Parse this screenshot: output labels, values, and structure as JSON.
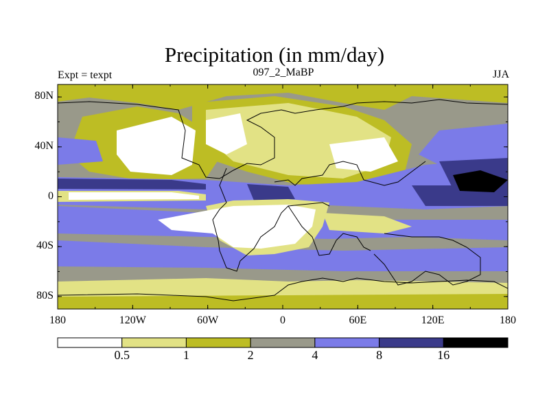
{
  "figure": {
    "title": "Precipitation (in mm/day)",
    "left_label": "Expt = texpt",
    "center_label": "097_2_MaBP",
    "right_label": "JJA"
  },
  "axes": {
    "y_ticks": [
      {
        "value": 80,
        "label": "80N"
      },
      {
        "value": 40,
        "label": "40N"
      },
      {
        "value": 0,
        "label": "0"
      },
      {
        "value": -40,
        "label": "40S"
      },
      {
        "value": -80,
        "label": "80S"
      }
    ],
    "x_ticks": [
      {
        "value": -180,
        "label": "180"
      },
      {
        "value": -120,
        "label": "120W"
      },
      {
        "value": -60,
        "label": "60W"
      },
      {
        "value": 0,
        "label": "0"
      },
      {
        "value": 60,
        "label": "60E"
      },
      {
        "value": 120,
        "label": "120E"
      },
      {
        "value": 180,
        "label": "180"
      }
    ],
    "lon_range": [
      -180,
      180
    ],
    "lat_range": [
      -90,
      90
    ]
  },
  "colorbar": {
    "colors": [
      "#ffffff",
      "#e2e285",
      "#bdbd24",
      "#99998a",
      "#7b7be8",
      "#3a3a8a",
      "#000000"
    ],
    "labels": [
      "0.5",
      "1",
      "2",
      "4",
      "8",
      "16"
    ]
  }
}
